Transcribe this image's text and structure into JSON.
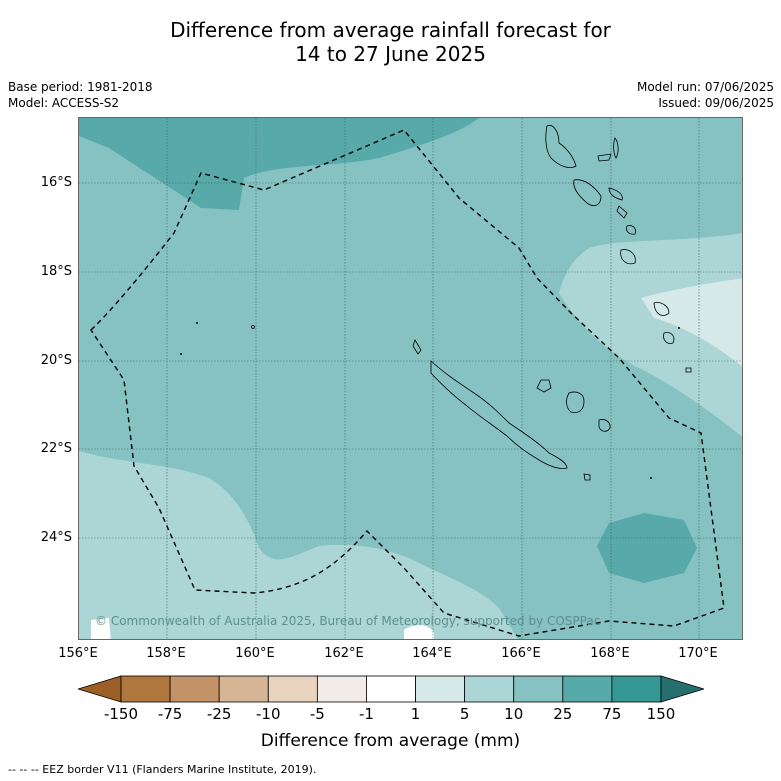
{
  "title": {
    "line1": "Difference from average rainfall forecast for",
    "line2": "14 to 27 June 2025"
  },
  "meta": {
    "base_period": "Base period: 1981-2018",
    "model": "Model: ACCESS-S2",
    "model_run": "Model run: 07/06/2025",
    "issued": "Issued: 09/06/2025"
  },
  "map": {
    "lat_labels": [
      "16°S",
      "18°S",
      "20°S",
      "22°S",
      "24°S"
    ],
    "lon_labels": [
      "156°E",
      "158°E",
      "160°E",
      "162°E",
      "164°E",
      "166°E",
      "168°E",
      "170°E"
    ],
    "copyright": "© Commonwealth of Australia 2025, Bureau of Meteorology, supported by COSPPac",
    "extent": {
      "lon_min": 156,
      "lon_max": 171,
      "lat_min": -26.3,
      "lat_max": -14.5
    },
    "colors": {
      "class_10_25": "#86c2c1",
      "class_25_75": "#58a9a9",
      "class_5_10": "#acd6d6",
      "class_1_5": "#d5e9e8",
      "class_-1_1": "#ffffff"
    }
  },
  "colorbar": {
    "ticks": [
      "-150",
      "-75",
      "-25",
      "-10",
      "-5",
      "-1",
      "1",
      "5",
      "10",
      "25",
      "75",
      "150"
    ],
    "colors": [
      "#9c5f25",
      "#af763e",
      "#c39266",
      "#d6b496",
      "#e8d3bf",
      "#f1ece8",
      "#ffffff",
      "#d5e9e8",
      "#acd6d6",
      "#86c2c1",
      "#58a9a9",
      "#359895",
      "#256f6e"
    ],
    "label": "Difference from average (mm)"
  },
  "footer": "--  --  -- EEZ border V11 (Flanders Marine Institute, 2019)."
}
